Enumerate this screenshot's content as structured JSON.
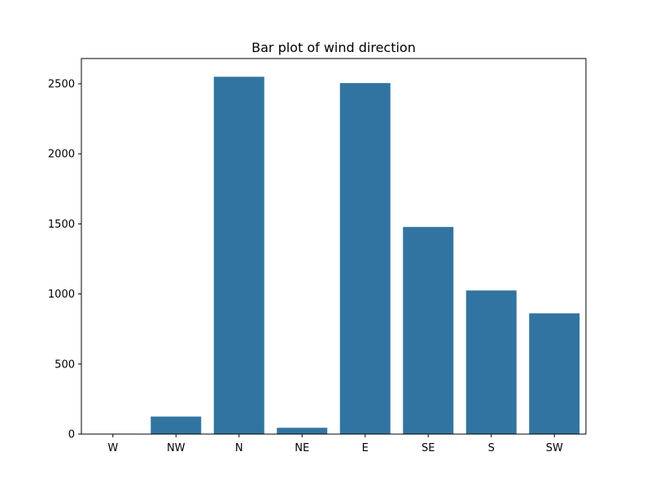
{
  "chart_data": {
    "type": "bar",
    "title": "Bar plot of wind direction",
    "xlabel": "",
    "ylabel": "",
    "categories": [
      "W",
      "NW",
      "N",
      "NE",
      "E",
      "SE",
      "S",
      "SW"
    ],
    "values": [
      3,
      125,
      2550,
      45,
      2505,
      1478,
      1025,
      862
    ],
    "ylim": [
      0,
      2680
    ],
    "yticks": [
      0,
      500,
      1000,
      1500,
      2000,
      2500
    ],
    "grid": false,
    "legend": "none",
    "bar_color": "#3274a1"
  }
}
